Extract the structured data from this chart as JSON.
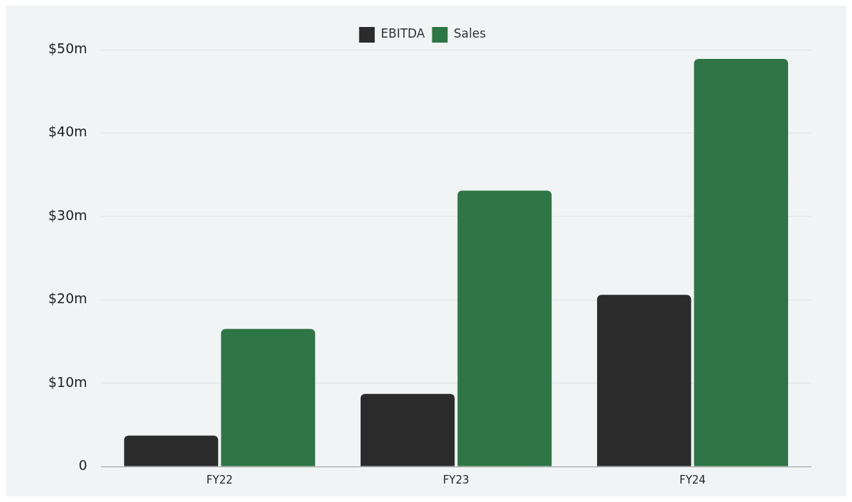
{
  "chart_data": {
    "type": "bar",
    "categories": [
      "FY22",
      "FY23",
      "FY24"
    ],
    "series": [
      {
        "name": "EBITDA",
        "color": "#2b2b2b",
        "values": [
          3.7,
          8.7,
          20.6
        ]
      },
      {
        "name": "Sales",
        "color": "#2e7545",
        "values": [
          16.5,
          33.1,
          48.9
        ]
      }
    ],
    "ylim": [
      0,
      50
    ],
    "yticks": [
      {
        "value": 0,
        "label": "0"
      },
      {
        "value": 10,
        "label": "$10m"
      },
      {
        "value": 20,
        "label": "$20m"
      },
      {
        "value": 30,
        "label": "$30m"
      },
      {
        "value": 40,
        "label": "$40m"
      },
      {
        "value": 50,
        "label": "$50m"
      }
    ],
    "grid": "y",
    "legend": "top"
  }
}
